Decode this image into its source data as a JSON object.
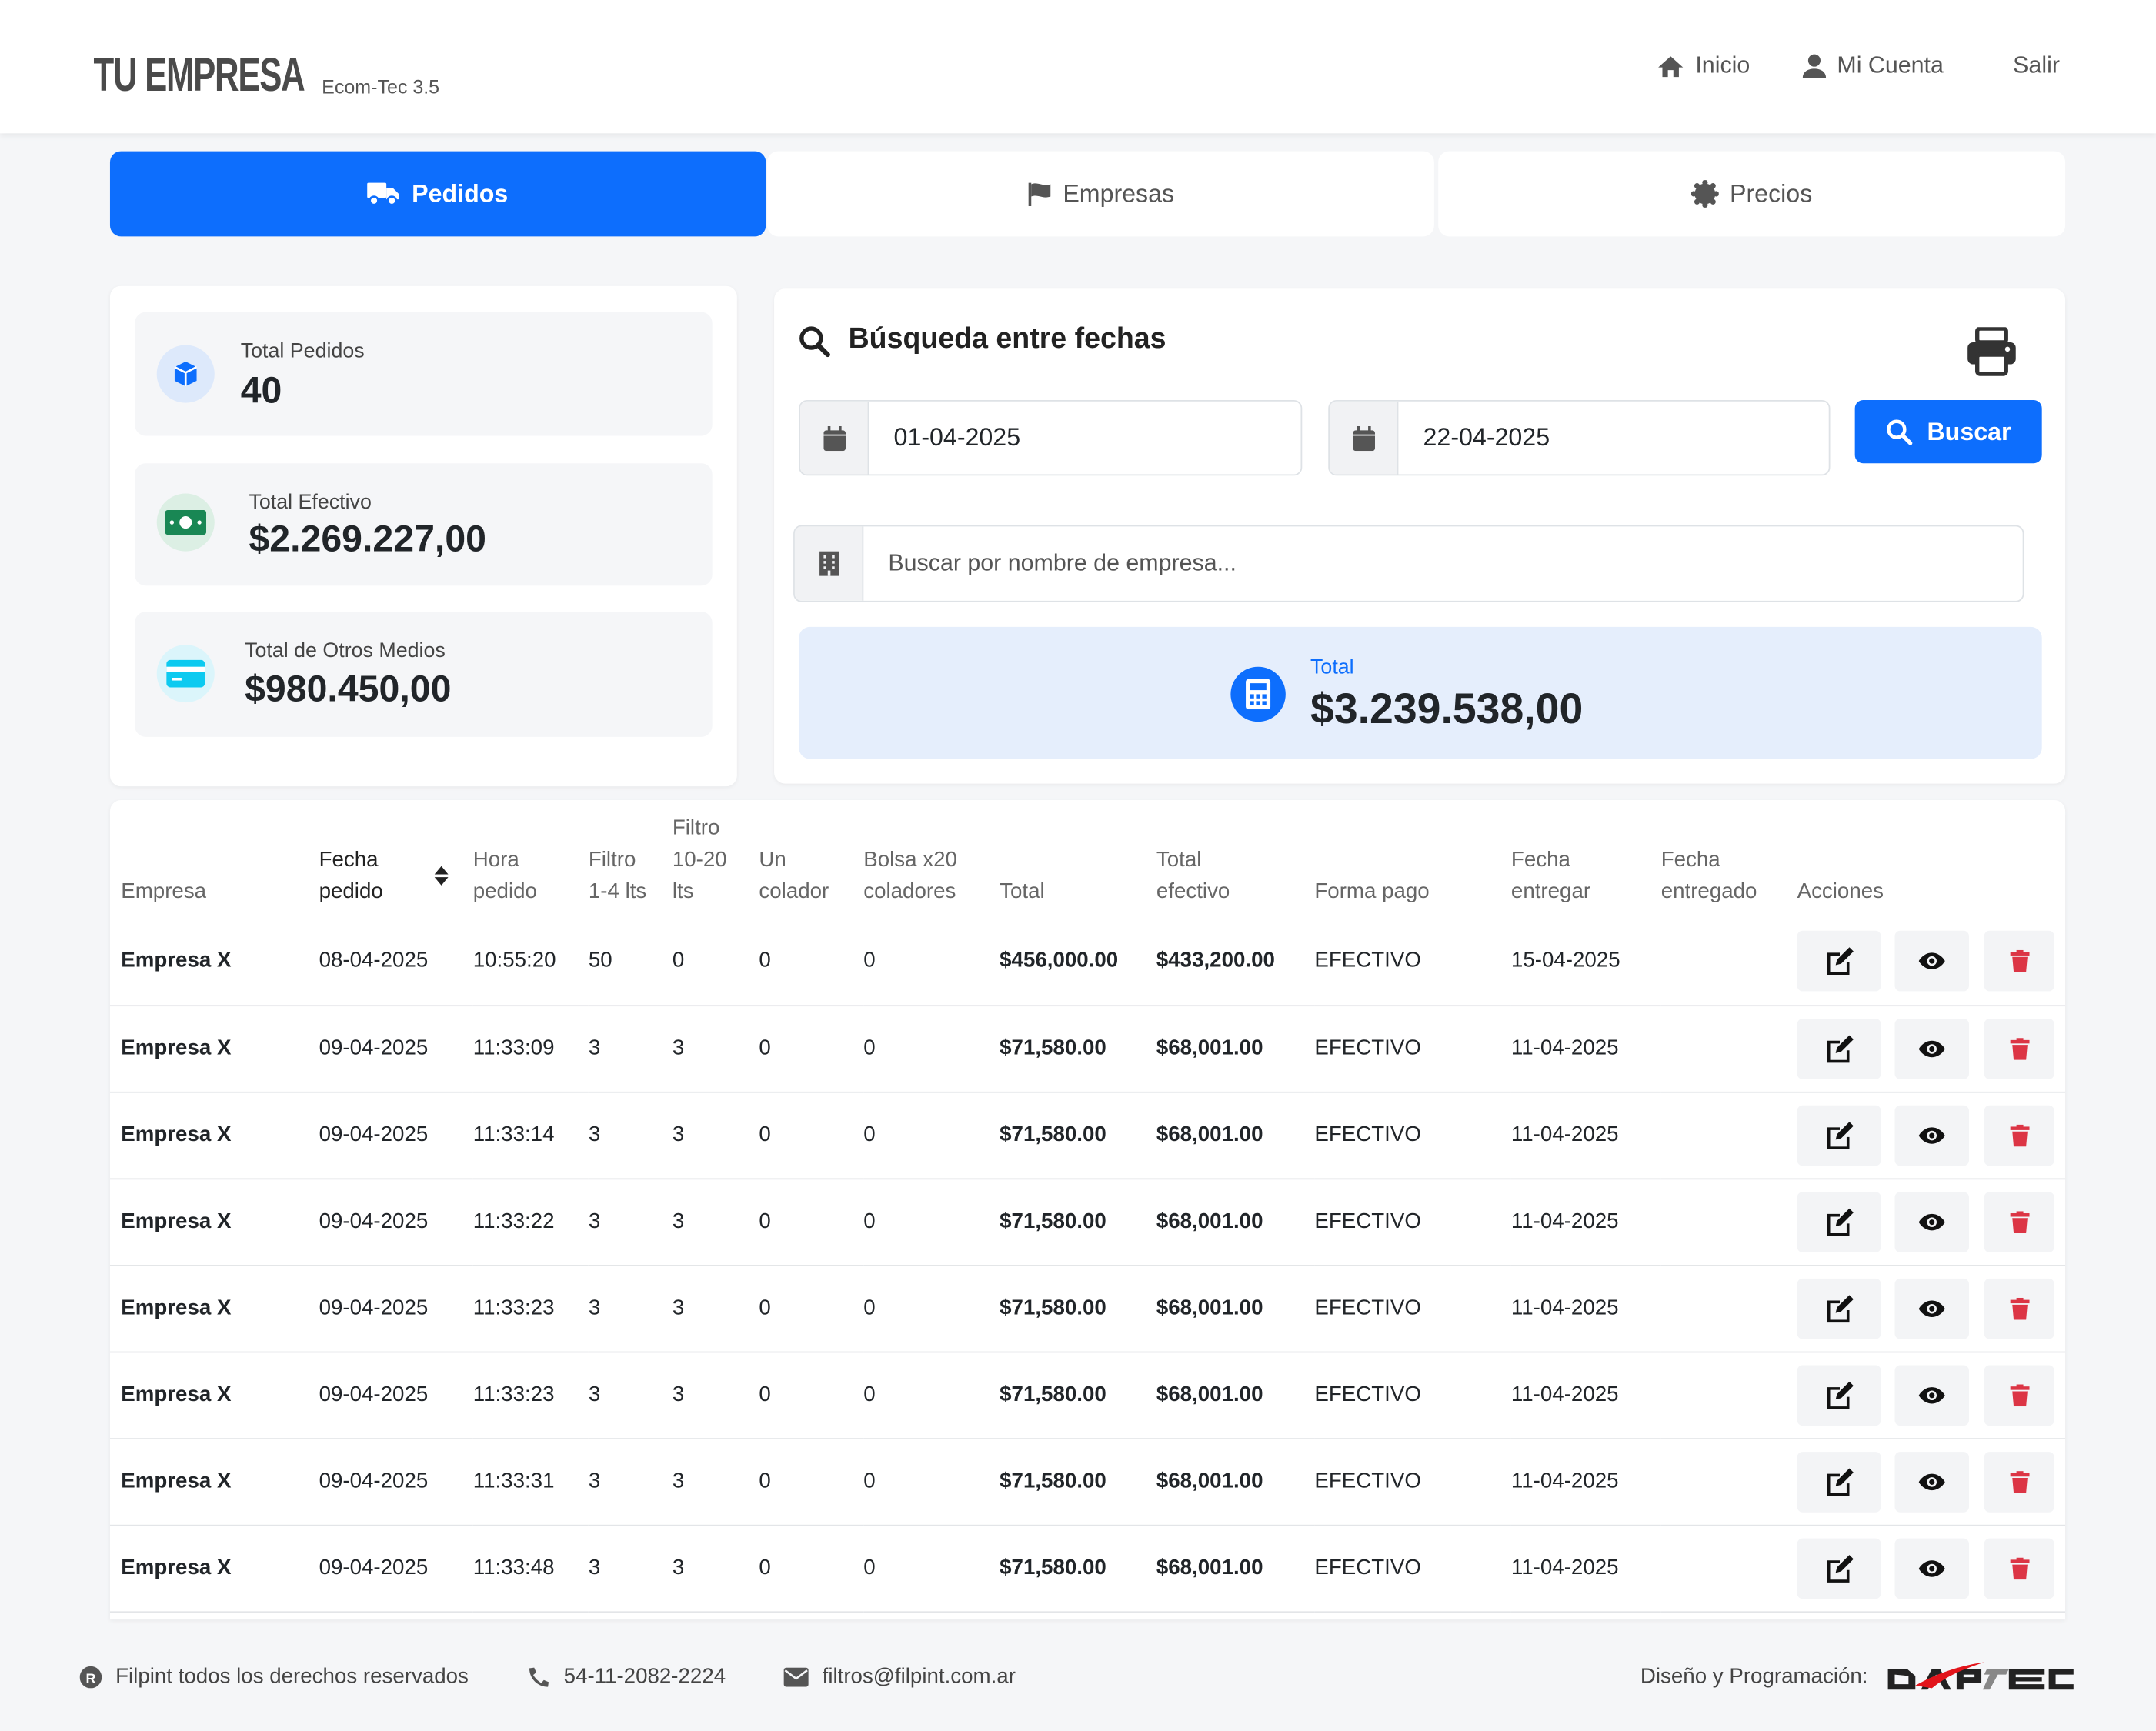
{
  "header": {
    "brand": "TU EMPRESA",
    "version": "Ecom-Tec 3.5",
    "nav": [
      {
        "label": "Inicio",
        "icon": "home-icon"
      },
      {
        "label": "Mi Cuenta",
        "icon": "user-icon"
      },
      {
        "label": "Salir"
      }
    ]
  },
  "tabs": [
    {
      "label": "Pedidos",
      "icon": "truck-icon",
      "active": true
    },
    {
      "label": "Empresas",
      "icon": "flag-icon"
    },
    {
      "label": "Precios",
      "icon": "badge-icon"
    }
  ],
  "stats": [
    {
      "label": "Total Pedidos",
      "value": "40"
    },
    {
      "label": "Total Efectivo",
      "value": "$2.269.227,00"
    },
    {
      "label": "Total de Otros Medios",
      "value": "$980.450,00"
    }
  ],
  "search": {
    "title": "Búsqueda entre fechas",
    "date_from": "01-04-2025",
    "date_to": "22-04-2025",
    "button": "Buscar",
    "company_placeholder": "Buscar por nombre de empresa...",
    "total_label": "Total",
    "total_value": "$3.239.538,00"
  },
  "colors": {
    "primary": "#0d6efd",
    "danger": "#dc3545",
    "success": "#198754",
    "info": "#0dcaf0"
  },
  "table": {
    "headers": [
      "Empresa",
      "Fecha pedido",
      "Hora pedido",
      "Filtro 1-4 lts",
      "Filtro 10-20 lts",
      "Un colador",
      "Bolsa x20 coladores",
      "Total",
      "Total efectivo",
      "Forma pago",
      "Fecha entregar",
      "Fecha entregado",
      "Acciones"
    ],
    "rows": [
      [
        "Empresa X",
        "08-04-2025",
        "10:55:20",
        "50",
        "0",
        "0",
        "0",
        "$456,000.00",
        "$433,200.00",
        "EFECTIVO",
        "15-04-2025",
        ""
      ],
      [
        "Empresa X",
        "09-04-2025",
        "11:33:09",
        "3",
        "3",
        "0",
        "0",
        "$71,580.00",
        "$68,001.00",
        "EFECTIVO",
        "11-04-2025",
        ""
      ],
      [
        "Empresa X",
        "09-04-2025",
        "11:33:14",
        "3",
        "3",
        "0",
        "0",
        "$71,580.00",
        "$68,001.00",
        "EFECTIVO",
        "11-04-2025",
        ""
      ],
      [
        "Empresa X",
        "09-04-2025",
        "11:33:22",
        "3",
        "3",
        "0",
        "0",
        "$71,580.00",
        "$68,001.00",
        "EFECTIVO",
        "11-04-2025",
        ""
      ],
      [
        "Empresa X",
        "09-04-2025",
        "11:33:23",
        "3",
        "3",
        "0",
        "0",
        "$71,580.00",
        "$68,001.00",
        "EFECTIVO",
        "11-04-2025",
        ""
      ],
      [
        "Empresa X",
        "09-04-2025",
        "11:33:23",
        "3",
        "3",
        "0",
        "0",
        "$71,580.00",
        "$68,001.00",
        "EFECTIVO",
        "11-04-2025",
        ""
      ],
      [
        "Empresa X",
        "09-04-2025",
        "11:33:31",
        "3",
        "3",
        "0",
        "0",
        "$71,580.00",
        "$68,001.00",
        "EFECTIVO",
        "11-04-2025",
        ""
      ],
      [
        "Empresa X",
        "09-04-2025",
        "11:33:48",
        "3",
        "3",
        "0",
        "0",
        "$71,580.00",
        "$68,001.00",
        "EFECTIVO",
        "11-04-2025",
        ""
      ]
    ]
  },
  "footer": {
    "copyright": "Filpint todos los derechos reservados",
    "phone": "54-11-2082-2224",
    "email": "filtros@filpint.com.ar",
    "credit": "Diseño y Programación:",
    "credit_logo": "DAPTEC"
  }
}
